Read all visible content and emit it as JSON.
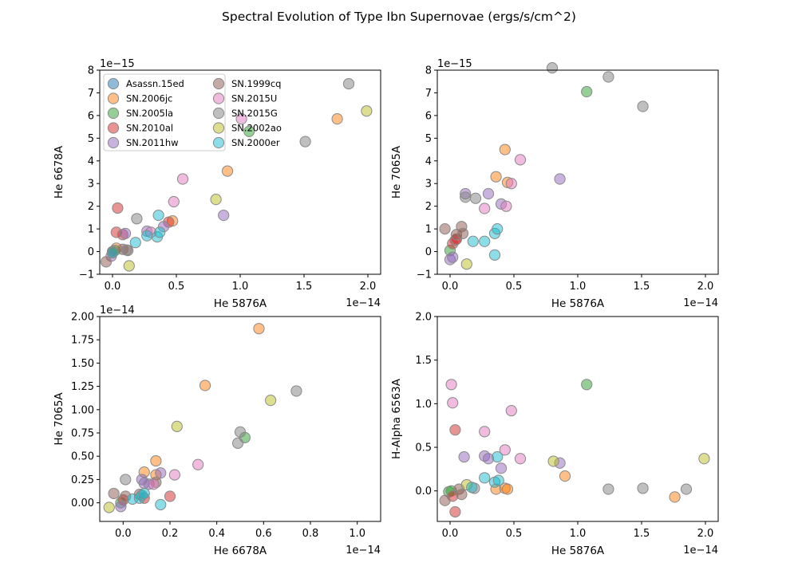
{
  "figure": {
    "title": "Spectral Evolution of Type Ibn Supernovae (ergs/s/cm^2)"
  },
  "series_colors": {
    "Asassn.15ed": "#1f77b4",
    "SN.2006jc": "#ff7f0e",
    "SN.2005la": "#2ca02c",
    "SN.2010al": "#d62728",
    "SN.2011hw": "#9467bd",
    "SN.1999cq": "#8c564b",
    "SN.2015U": "#e377c2",
    "SN.2015G": "#7f7f7f",
    "SN.2002ao": "#bcbd22",
    "SN.2000er": "#17becf"
  },
  "chart_data": [
    {
      "type": "scatter",
      "xlabel": "He 5876A",
      "ylabel": "He 6678A",
      "x_offset_text": "1e−14",
      "y_offset_text": "1e−15",
      "xlim": [
        -0.1,
        2.1
      ],
      "ylim": [
        -1,
        8
      ],
      "xticks": [
        "0.0",
        "0.5",
        "1.0",
        "1.5",
        "2.0"
      ],
      "yticks": [
        "−1",
        "0",
        "1",
        "2",
        "3",
        "4",
        "5",
        "6",
        "7",
        "8"
      ],
      "grid": false,
      "legend": {
        "placement": "upper-left",
        "columns": 2,
        "entries": [
          "Asassn.15ed",
          "SN.2006jc",
          "SN.2005la",
          "SN.2010al",
          "SN.2011hw",
          "SN.1999cq",
          "SN.2015U",
          "SN.2015G",
          "SN.2002ao",
          "SN.2000er"
        ]
      },
      "series": [
        {
          "name": "SN.2006jc",
          "points": [
            [
              0.03,
              0.15
            ],
            [
              0.47,
              1.35
            ],
            [
              0.9,
              3.55
            ],
            [
              1.76,
              5.85
            ]
          ]
        },
        {
          "name": "SN.2005la",
          "points": [
            [
              0.0,
              -0.05
            ],
            [
              0.02,
              0.05
            ],
            [
              1.07,
              5.3
            ]
          ]
        },
        {
          "name": "SN.2010al",
          "points": [
            [
              0.04,
              1.92
            ],
            [
              0.03,
              0.85
            ],
            [
              0.08,
              0.75
            ],
            [
              0.44,
              1.3
            ]
          ]
        },
        {
          "name": "SN.2011hw",
          "points": [
            [
              -0.01,
              -0.2
            ],
            [
              0.1,
              0.8
            ],
            [
              0.27,
              0.9
            ],
            [
              0.4,
              1.1
            ],
            [
              0.87,
              1.6
            ]
          ]
        },
        {
          "name": "SN.1999cq",
          "points": [
            [
              -0.05,
              -0.45
            ],
            [
              0.0,
              0.0
            ],
            [
              0.08,
              0.1
            ],
            [
              0.11,
              0.07
            ]
          ]
        },
        {
          "name": "SN.2015U",
          "points": [
            [
              0.3,
              0.85
            ],
            [
              0.48,
              2.2
            ],
            [
              0.55,
              3.2
            ],
            [
              1.01,
              5.85
            ]
          ]
        },
        {
          "name": "SN.2015G",
          "points": [
            [
              0.19,
              1.45
            ],
            [
              0.12,
              0.05
            ],
            [
              1.51,
              4.85
            ],
            [
              1.85,
              7.4
            ]
          ]
        },
        {
          "name": "SN.2002ao",
          "points": [
            [
              0.13,
              -0.63
            ],
            [
              0.81,
              2.3
            ],
            [
              1.99,
              6.2
            ]
          ]
        },
        {
          "name": "SN.2000er",
          "points": [
            [
              0.0,
              -0.05
            ],
            [
              0.18,
              0.4
            ],
            [
              0.27,
              0.7
            ],
            [
              0.35,
              0.65
            ],
            [
              0.36,
              1.6
            ],
            [
              0.37,
              0.85
            ]
          ]
        }
      ]
    },
    {
      "type": "scatter",
      "xlabel": "He 5876A",
      "ylabel": "He 7065A",
      "x_offset_text": "1e−14",
      "y_offset_text": "1e−15",
      "xlim": [
        -0.1,
        2.1
      ],
      "ylim": [
        -1,
        8
      ],
      "xticks": [
        "0.0",
        "0.5",
        "1.0",
        "1.5",
        "2.0"
      ],
      "yticks": [
        "−1",
        "0",
        "1",
        "2",
        "3",
        "4",
        "5",
        "6",
        "7",
        "8"
      ],
      "grid": false,
      "series": [
        {
          "name": "SN.2006jc",
          "points": [
            [
              0.36,
              3.3
            ],
            [
              0.43,
              4.5
            ],
            [
              0.45,
              3.05
            ]
          ]
        },
        {
          "name": "SN.2005la",
          "points": [
            [
              0.0,
              0.05
            ],
            [
              1.07,
              7.05
            ]
          ]
        },
        {
          "name": "SN.2010al",
          "points": [
            [
              0.02,
              0.35
            ],
            [
              0.04,
              0.5
            ],
            [
              0.05,
              0.55
            ]
          ]
        },
        {
          "name": "SN.2011hw",
          "points": [
            [
              0.0,
              -0.35
            ],
            [
              0.02,
              -0.25
            ],
            [
              0.12,
              2.55
            ],
            [
              0.3,
              2.55
            ],
            [
              0.4,
              2.1
            ],
            [
              0.86,
              3.2
            ]
          ]
        },
        {
          "name": "SN.1999cq",
          "points": [
            [
              -0.04,
              1.0
            ],
            [
              0.05,
              0.75
            ],
            [
              0.09,
              1.1
            ],
            [
              0.1,
              0.8
            ]
          ]
        },
        {
          "name": "SN.2015U",
          "points": [
            [
              0.27,
              1.9
            ],
            [
              0.44,
              2.0
            ],
            [
              0.48,
              3.0
            ],
            [
              0.55,
              4.05
            ]
          ]
        },
        {
          "name": "SN.2015G",
          "points": [
            [
              0.12,
              2.4
            ],
            [
              0.2,
              2.35
            ],
            [
              0.8,
              8.1
            ],
            [
              1.24,
              7.7
            ],
            [
              1.51,
              6.4
            ]
          ]
        },
        {
          "name": "SN.2002ao",
          "points": [
            [
              0.13,
              -0.55
            ]
          ]
        },
        {
          "name": "SN.2000er",
          "points": [
            [
              0.18,
              0.45
            ],
            [
              0.27,
              0.45
            ],
            [
              0.35,
              0.8
            ],
            [
              0.35,
              -0.15
            ],
            [
              0.37,
              1.0
            ]
          ]
        }
      ]
    },
    {
      "type": "scatter",
      "xlabel": "He 6678A",
      "ylabel": "He 7065A",
      "x_offset_text": "1e−14",
      "y_offset_text": "1e−14",
      "xlim": [
        -0.1,
        1.1
      ],
      "ylim": [
        -0.2,
        2.0
      ],
      "xticks": [
        "0.0",
        "0.2",
        "0.4",
        "0.6",
        "0.8",
        "1.0"
      ],
      "yticks": [
        "0.00",
        "0.25",
        "0.50",
        "0.75",
        "1.00",
        "1.25",
        "1.50",
        "1.75",
        "2.00"
      ],
      "grid": false,
      "series": [
        {
          "name": "SN.2006jc",
          "points": [
            [
              0.09,
              0.33
            ],
            [
              0.14,
              0.45
            ],
            [
              0.14,
              0.3
            ],
            [
              0.35,
              1.26
            ],
            [
              0.58,
              1.87
            ]
          ]
        },
        {
          "name": "SN.2005la",
          "points": [
            [
              -0.01,
              0.0
            ],
            [
              0.52,
              0.7
            ]
          ]
        },
        {
          "name": "SN.2010al",
          "points": [
            [
              0.0,
              0.03
            ],
            [
              0.09,
              0.05
            ],
            [
              0.2,
              0.07
            ]
          ]
        },
        {
          "name": "SN.2011hw",
          "points": [
            [
              -0.01,
              -0.04
            ],
            [
              0.08,
              0.25
            ],
            [
              0.09,
              0.21
            ],
            [
              0.11,
              0.2
            ],
            [
              0.16,
              0.32
            ]
          ]
        },
        {
          "name": "SN.1999cq",
          "points": [
            [
              -0.04,
              0.1
            ],
            [
              0.01,
              0.07
            ],
            [
              0.07,
              0.09
            ],
            [
              0.14,
              0.22
            ]
          ]
        },
        {
          "name": "SN.2015U",
          "points": [
            [
              0.13,
              0.2
            ],
            [
              0.22,
              0.3
            ],
            [
              0.32,
              0.41
            ]
          ]
        },
        {
          "name": "SN.2015G",
          "points": [
            [
              0.01,
              0.25
            ],
            [
              0.49,
              0.64
            ],
            [
              0.5,
              0.76
            ],
            [
              0.74,
              1.2
            ]
          ]
        },
        {
          "name": "SN.2002ao",
          "points": [
            [
              -0.06,
              -0.05
            ],
            [
              0.23,
              0.82
            ],
            [
              0.63,
              1.1
            ]
          ]
        },
        {
          "name": "SN.2000er",
          "points": [
            [
              0.04,
              0.04
            ],
            [
              0.07,
              0.05
            ],
            [
              0.08,
              0.08
            ],
            [
              0.09,
              0.1
            ],
            [
              0.16,
              -0.02
            ]
          ]
        }
      ]
    },
    {
      "type": "scatter",
      "xlabel": "He 5876A",
      "ylabel": "H-Alpha 6563A",
      "x_offset_text": "1e−14",
      "y_offset_text": "",
      "xlim": [
        -0.1,
        2.1
      ],
      "ylim": [
        -0.35,
        2.0
      ],
      "xticks": [
        "0.0",
        "0.5",
        "1.0",
        "1.5",
        "2.0"
      ],
      "yticks": [
        "0.0",
        "0.5",
        "1.0",
        "1.5",
        "2.0"
      ],
      "grid": false,
      "series": [
        {
          "name": "SN.2006jc",
          "points": [
            [
              0.36,
              0.02
            ],
            [
              0.43,
              0.03
            ],
            [
              0.45,
              0.02
            ],
            [
              0.9,
              0.17
            ],
            [
              1.76,
              -0.07
            ]
          ]
        },
        {
          "name": "SN.2005la",
          "points": [
            [
              -0.01,
              -0.01
            ],
            [
              0.01,
              0.0
            ],
            [
              1.07,
              1.22
            ]
          ]
        },
        {
          "name": "SN.2010al",
          "points": [
            [
              0.02,
              -0.06
            ],
            [
              0.04,
              0.7
            ],
            [
              0.04,
              -0.24
            ]
          ]
        },
        {
          "name": "SN.2011hw",
          "points": [
            [
              0.11,
              0.39
            ],
            [
              0.27,
              0.4
            ],
            [
              0.3,
              0.37
            ],
            [
              0.4,
              0.26
            ],
            [
              0.86,
              0.32
            ]
          ]
        },
        {
          "name": "SN.1999cq",
          "points": [
            [
              -0.04,
              -0.11
            ],
            [
              0.07,
              0.02
            ],
            [
              0.09,
              -0.04
            ]
          ]
        },
        {
          "name": "SN.2015U",
          "points": [
            [
              0.01,
              1.22
            ],
            [
              0.02,
              1.01
            ],
            [
              0.27,
              0.68
            ],
            [
              0.43,
              0.47
            ],
            [
              0.48,
              0.92
            ],
            [
              0.55,
              0.37
            ]
          ]
        },
        {
          "name": "SN.2015G",
          "points": [
            [
              0.19,
              0.03
            ],
            [
              1.24,
              0.02
            ],
            [
              1.51,
              0.03
            ],
            [
              1.85,
              0.02
            ]
          ]
        },
        {
          "name": "SN.2002ao",
          "points": [
            [
              0.13,
              0.07
            ],
            [
              0.81,
              0.34
            ],
            [
              1.99,
              0.37
            ]
          ]
        },
        {
          "name": "SN.2000er",
          "points": [
            [
              0.17,
              0.04
            ],
            [
              0.27,
              0.15
            ],
            [
              0.35,
              0.1
            ],
            [
              0.37,
              0.39
            ],
            [
              0.38,
              0.12
            ]
          ]
        }
      ]
    }
  ]
}
